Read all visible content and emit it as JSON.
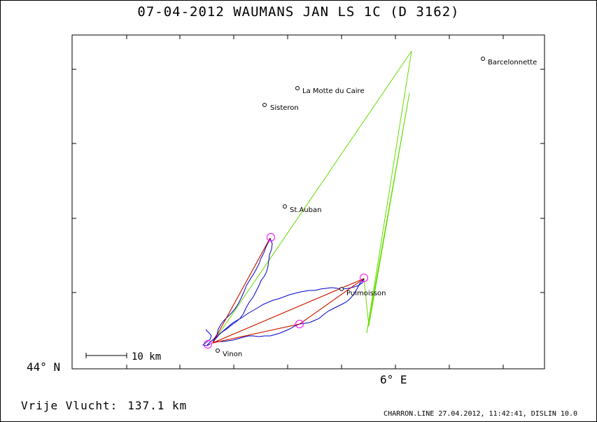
{
  "title": "07-04-2012   WAUMANS JAN   LS 1C (D 3162)",
  "axes": {
    "lat_label": "44° N",
    "lon_label": "6° E"
  },
  "scale_bar": {
    "label": "10 km"
  },
  "distance": {
    "label": "Vrije Vlucht:",
    "value": "137.1 km"
  },
  "footer": "CHARRON.LINE 27.04.2012, 11:42:41, DISLIN 10.0",
  "towns": [
    {
      "id": "barcelonnette",
      "name": "Barcelonnette"
    },
    {
      "id": "la-motte-du-caire",
      "name": "La Motte du Caire"
    },
    {
      "id": "sisteron",
      "name": "Sisteron"
    },
    {
      "id": "st-auban",
      "name": "St.Auban"
    },
    {
      "id": "puimoisson",
      "name": "Puimoisson"
    },
    {
      "id": "vinon",
      "name": "Vinon"
    }
  ],
  "colors": {
    "track": "#0000cc",
    "task_legs": "#dd0000",
    "connecting_lines": "#66dd00",
    "turnpoints": "#ff00ff"
  }
}
